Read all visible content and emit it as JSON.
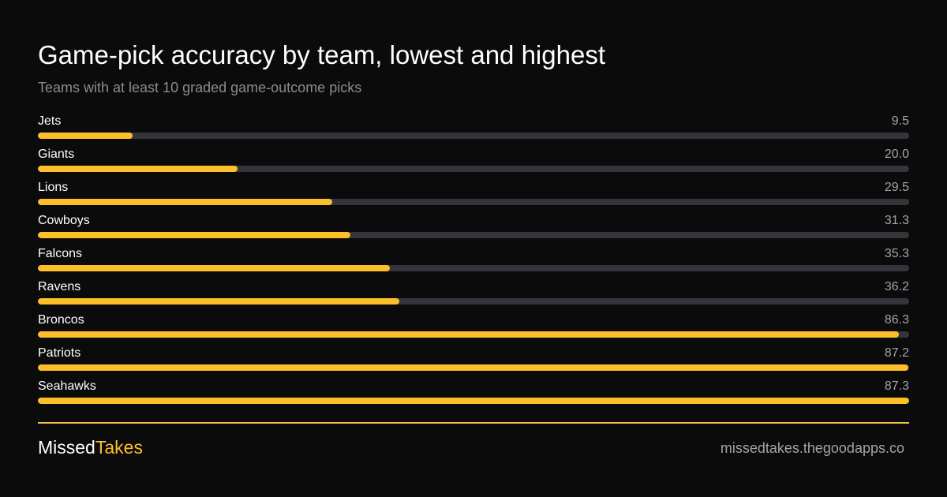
{
  "header": {
    "title": "Game-pick accuracy by team, lowest and highest",
    "subtitle": "Teams with at least 10 graded game-outcome picks"
  },
  "colors": {
    "background": "#0b0b0c",
    "bar_fill": "#fcbf2a",
    "bar_track": "#34343b",
    "muted_text": "#a3a3aa",
    "divider": "#f5c247"
  },
  "chart_data": {
    "type": "bar",
    "orientation": "horizontal",
    "categories": [
      "Jets",
      "Giants",
      "Lions",
      "Cowboys",
      "Falcons",
      "Ravens",
      "Broncos",
      "Patriots",
      "Seahawks"
    ],
    "values": [
      9.5,
      20.0,
      29.5,
      31.3,
      35.3,
      36.2,
      86.3,
      87.2,
      87.3
    ],
    "value_labels": [
      "9.5",
      "20.0",
      "29.5",
      "31.3",
      "35.3",
      "36.2",
      "86.3",
      "87.2",
      "87.3"
    ],
    "xlim": [
      0,
      87.3
    ],
    "grid": false,
    "legend": "none"
  },
  "footer": {
    "brand_part1": "Missed",
    "brand_part2": "Takes",
    "url": "missedtakes.thegoodapps.co"
  }
}
